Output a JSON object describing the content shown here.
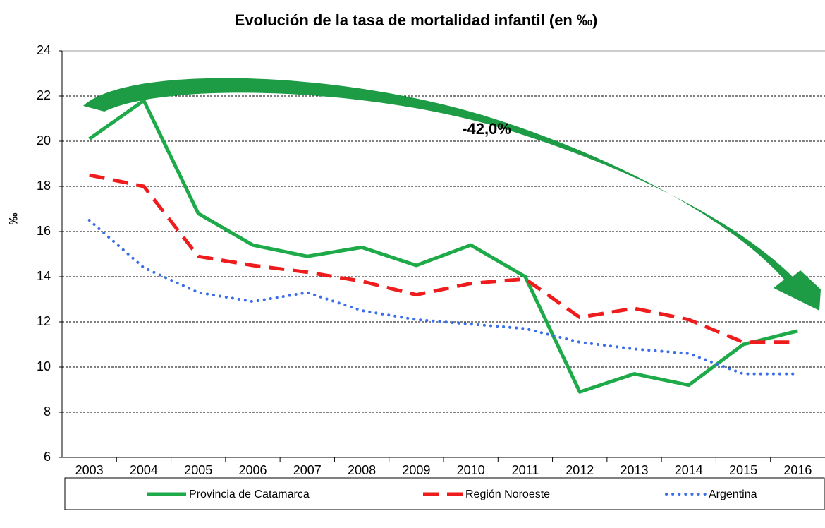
{
  "chart_data": {
    "type": "line",
    "title": "Evolución de la tasa de mortalidad infantil  (en ‰)",
    "y_label": "‰",
    "annotation": "-42,0%",
    "categories": [
      "2003",
      "2004",
      "2005",
      "2006",
      "2007",
      "2008",
      "2009",
      "2010",
      "2011",
      "2012",
      "2013",
      "2014",
      "2015",
      "2016"
    ],
    "series": [
      {
        "name": "Provincia de Catamarca",
        "color": "#1faa4a",
        "style": "solid",
        "values": [
          20.1,
          21.8,
          16.8,
          15.4,
          14.9,
          15.3,
          14.5,
          15.4,
          14.0,
          8.9,
          9.7,
          9.2,
          11.0,
          11.6
        ]
      },
      {
        "name": "Región Noroeste",
        "color": "#ee1c1c",
        "style": "dashed",
        "values": [
          18.5,
          18.0,
          14.9,
          14.5,
          14.2,
          13.8,
          13.2,
          13.7,
          13.9,
          12.2,
          12.6,
          12.1,
          11.1,
          11.1
        ]
      },
      {
        "name": "Argentina",
        "color": "#3b6ee8",
        "style": "dotted",
        "values": [
          16.5,
          14.4,
          13.3,
          12.9,
          13.3,
          12.5,
          12.1,
          11.9,
          11.7,
          11.1,
          10.8,
          10.6,
          9.7,
          9.7
        ]
      }
    ],
    "ylim": [
      6,
      24
    ],
    "yticks": [
      6,
      8,
      10,
      12,
      14,
      16,
      18,
      20,
      22,
      24
    ],
    "grid": true,
    "legend": "bottom"
  }
}
